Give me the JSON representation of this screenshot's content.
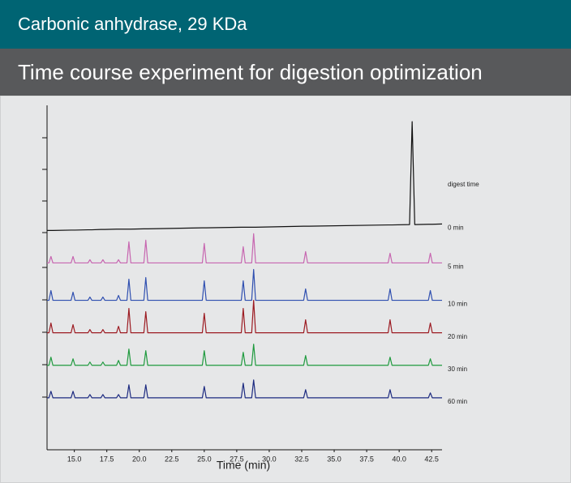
{
  "header": {
    "title": "Carbonic anhydrase, 29 KDa",
    "subtitle": "Time course experiment for digestion optimization"
  },
  "chart_data": {
    "type": "line",
    "xlabel": "Time (min)",
    "legend_title": "digest time",
    "x": [
      12.9,
      13.05,
      13.2,
      13.35,
      14.75,
      14.9,
      15.05,
      16.05,
      16.2,
      16.35,
      17.05,
      17.2,
      17.35,
      18.25,
      18.4,
      18.55,
      19.05,
      19.2,
      19.35,
      20.35,
      20.5,
      20.65,
      24.85,
      25,
      25.15,
      27.85,
      28,
      28.15,
      28.65,
      28.8,
      28.95,
      32.65,
      32.8,
      32.95,
      39.15,
      39.3,
      39.45,
      40.8,
      41,
      41.2,
      42.25,
      42.4,
      42.55,
      43.3
    ],
    "xlim": [
      12.9,
      43.3
    ],
    "xticks": [
      {
        "value": 15,
        "label": "15.0"
      },
      17.5,
      {
        "value": 20,
        "label": "20.0"
      },
      22.5,
      {
        "value": 25,
        "label": "25.0"
      },
      27.5,
      {
        "value": 30,
        "label": "30.0"
      },
      32.5,
      {
        "value": 35,
        "label": "35.0"
      },
      37.5,
      {
        "value": 40,
        "label": "40.0"
      },
      42.5
    ],
    "ylim": [
      0,
      10.6
    ],
    "series": [
      {
        "name": "0 min",
        "color": "#111111",
        "values": [
          6.75,
          6.75,
          6.75,
          6.75,
          6.76,
          6.76,
          6.76,
          6.77,
          6.77,
          6.77,
          6.78,
          6.78,
          6.78,
          6.79,
          6.79,
          6.79,
          6.79,
          6.79,
          6.79,
          6.8,
          6.8,
          6.8,
          6.83,
          6.83,
          6.83,
          6.85,
          6.85,
          6.85,
          6.85,
          6.85,
          6.85,
          6.88,
          6.88,
          6.88,
          6.92,
          6.92,
          6.92,
          6.93,
          10.1,
          6.93,
          6.94,
          6.94,
          6.94,
          6.95
        ]
      },
      {
        "name": "5 min",
        "color": "#c766b0",
        "values": [
          5.75,
          5.75,
          5.95,
          5.75,
          5.75,
          5.95,
          5.75,
          5.75,
          5.85,
          5.75,
          5.75,
          5.85,
          5.75,
          5.75,
          5.85,
          5.75,
          5.75,
          6.4,
          5.75,
          5.75,
          6.45,
          5.75,
          5.75,
          6.35,
          5.75,
          5.75,
          6.25,
          5.75,
          5.75,
          6.65,
          5.75,
          5.75,
          6.1,
          5.75,
          5.75,
          6.05,
          5.75,
          5.75,
          5.75,
          5.75,
          5.75,
          6.05,
          5.75,
          5.75
        ]
      },
      {
        "name": "10 min",
        "color": "#2f4fb0",
        "values": [
          4.6,
          4.6,
          4.9,
          4.6,
          4.6,
          4.85,
          4.6,
          4.6,
          4.7,
          4.6,
          4.6,
          4.7,
          4.6,
          4.6,
          4.75,
          4.6,
          4.6,
          5.25,
          4.6,
          4.6,
          5.3,
          4.6,
          4.6,
          5.2,
          4.6,
          4.6,
          5.2,
          4.6,
          4.6,
          5.55,
          4.6,
          4.6,
          4.95,
          4.6,
          4.6,
          4.95,
          4.6,
          4.6,
          4.6,
          4.6,
          4.6,
          4.9,
          4.6,
          4.6
        ]
      },
      {
        "name": "20 min",
        "color": "#9c1b22",
        "values": [
          3.6,
          3.6,
          3.9,
          3.6,
          3.6,
          3.85,
          3.6,
          3.6,
          3.7,
          3.6,
          3.6,
          3.7,
          3.6,
          3.6,
          3.8,
          3.6,
          3.6,
          4.35,
          3.6,
          3.6,
          4.25,
          3.6,
          3.6,
          4.2,
          3.6,
          3.6,
          4.35,
          3.6,
          3.6,
          4.6,
          3.6,
          3.6,
          4.0,
          3.6,
          3.6,
          4.0,
          3.6,
          3.6,
          3.6,
          3.6,
          3.6,
          3.9,
          3.6,
          3.6
        ]
      },
      {
        "name": "30 min",
        "color": "#1f9a3e",
        "values": [
          2.6,
          2.6,
          2.85,
          2.6,
          2.6,
          2.8,
          2.6,
          2.6,
          2.7,
          2.6,
          2.6,
          2.7,
          2.6,
          2.6,
          2.75,
          2.6,
          2.6,
          3.1,
          2.6,
          2.6,
          3.05,
          2.6,
          2.6,
          3.05,
          2.6,
          2.6,
          3.0,
          2.6,
          2.6,
          3.25,
          2.6,
          2.6,
          2.9,
          2.6,
          2.6,
          2.85,
          2.6,
          2.6,
          2.6,
          2.6,
          2.6,
          2.8,
          2.6,
          2.6
        ]
      },
      {
        "name": "60 min",
        "color": "#1c2a80",
        "values": [
          1.6,
          1.6,
          1.8,
          1.6,
          1.6,
          1.8,
          1.6,
          1.6,
          1.7,
          1.6,
          1.6,
          1.7,
          1.6,
          1.6,
          1.7,
          1.6,
          1.6,
          2.0,
          1.6,
          1.6,
          2.0,
          1.6,
          1.6,
          1.95,
          1.6,
          1.6,
          2.05,
          1.6,
          1.6,
          2.15,
          1.6,
          1.6,
          1.85,
          1.6,
          1.6,
          1.85,
          1.6,
          1.6,
          1.6,
          1.6,
          1.6,
          1.75,
          1.6,
          1.6
        ]
      }
    ]
  }
}
